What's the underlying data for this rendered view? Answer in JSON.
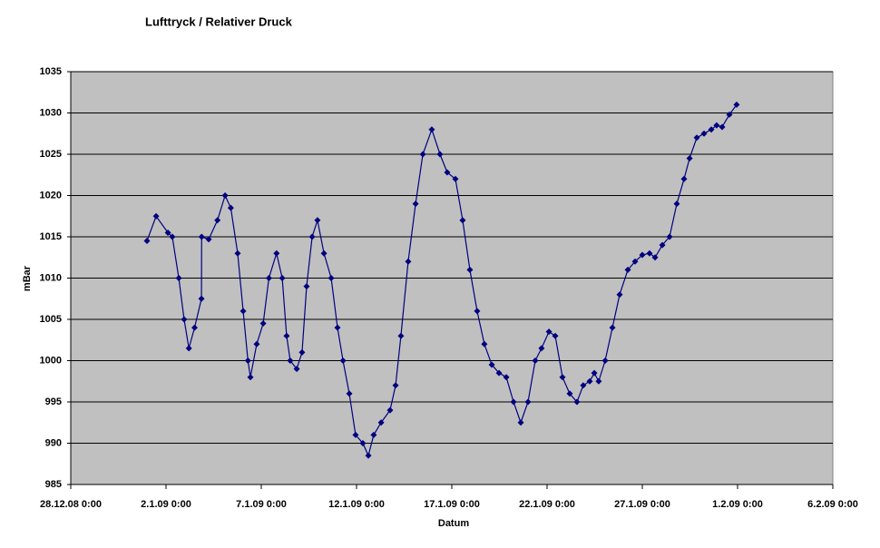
{
  "chart_data": {
    "type": "line",
    "title": "Lufttryck / Relativer Druck",
    "x_label": "Datum",
    "y_label": "mBar",
    "color": "#000080",
    "plot_background": "#c0c0c0",
    "grid": true,
    "x": [
      39814.0,
      39814.48,
      39815.1,
      39815.33,
      39815.67,
      39815.95,
      39816.2,
      39816.5,
      39816.86,
      39816.87,
      39817.24,
      39817.7,
      39818.1,
      39818.4,
      39818.76,
      39819.05,
      39819.3,
      39819.43,
      39819.76,
      39820.1,
      39820.4,
      39820.8,
      39821.1,
      39821.33,
      39821.52,
      39821.86,
      39822.14,
      39822.38,
      39822.67,
      39822.95,
      39823.29,
      39823.67,
      39824.0,
      39824.29,
      39824.62,
      39824.95,
      39825.33,
      39825.62,
      39825.9,
      39826.29,
      39826.76,
      39827.05,
      39827.33,
      39827.71,
      39828.1,
      39828.48,
      39828.95,
      39829.38,
      39829.76,
      39830.19,
      39830.57,
      39830.95,
      39831.33,
      39831.71,
      39832.1,
      39832.48,
      39832.86,
      39833.24,
      39833.62,
      39834.0,
      39834.38,
      39834.71,
      39835.1,
      39835.43,
      39835.81,
      39836.19,
      39836.57,
      39836.9,
      39837.24,
      39837.48,
      39837.71,
      39838.05,
      39838.43,
      39838.81,
      39839.24,
      39839.62,
      39840.0,
      39840.38,
      39840.67,
      39841.05,
      39841.43,
      39841.81,
      39842.19,
      39842.48,
      39842.86,
      39843.24,
      39843.62,
      39843.9,
      39844.19,
      39844.57,
      39844.95
    ],
    "values": [
      1014.5,
      1017.5,
      1015.5,
      1015,
      1010,
      1005,
      1001.5,
      1004,
      1007.5,
      1015,
      1014.7,
      1017,
      1020,
      1018.5,
      1013,
      1006,
      1000,
      998,
      1002,
      1004.5,
      1010,
      1013,
      1010,
      1003,
      1000,
      999,
      1001,
      1009,
      1015,
      1017,
      1013,
      1010,
      1004,
      1000,
      996,
      991,
      990,
      988.5,
      991,
      992.5,
      994,
      997,
      1003,
      1012,
      1019,
      1025,
      1028,
      1025,
      1022.8,
      1022,
      1017,
      1011,
      1006,
      1002,
      999.5,
      998.5,
      998,
      995,
      992.5,
      995,
      1000,
      1001.5,
      1003.5,
      1003,
      998,
      996,
      995,
      997,
      997.5,
      998.5,
      997.5,
      1000,
      1004,
      1008,
      1011,
      1012,
      1012.8,
      1013,
      1012.5,
      1014,
      1015,
      1019,
      1022,
      1024.5,
      1027,
      1027.5,
      1028,
      1028.5,
      1028.3,
      1029.8,
      1031
    ],
    "xlim": [
      39810,
      39850
    ],
    "xticks": [
      {
        "value": 39810,
        "label": "28.12.08 0:00"
      },
      {
        "value": 39815,
        "label": "2.1.09 0:00"
      },
      {
        "value": 39820,
        "label": "7.1.09 0:00"
      },
      {
        "value": 39825,
        "label": "12.1.09 0:00"
      },
      {
        "value": 39830,
        "label": "17.1.09 0:00"
      },
      {
        "value": 39835,
        "label": "22.1.09 0:00"
      },
      {
        "value": 39840,
        "label": "27.1.09 0:00"
      },
      {
        "value": 39845,
        "label": "1.2.09 0:00"
      },
      {
        "value": 39850,
        "label": "6.2.09 0:00"
      }
    ],
    "ylim": [
      985,
      1035
    ],
    "yticks": [
      985,
      990,
      995,
      1000,
      1005,
      1010,
      1015,
      1020,
      1025,
      1030,
      1035
    ]
  }
}
